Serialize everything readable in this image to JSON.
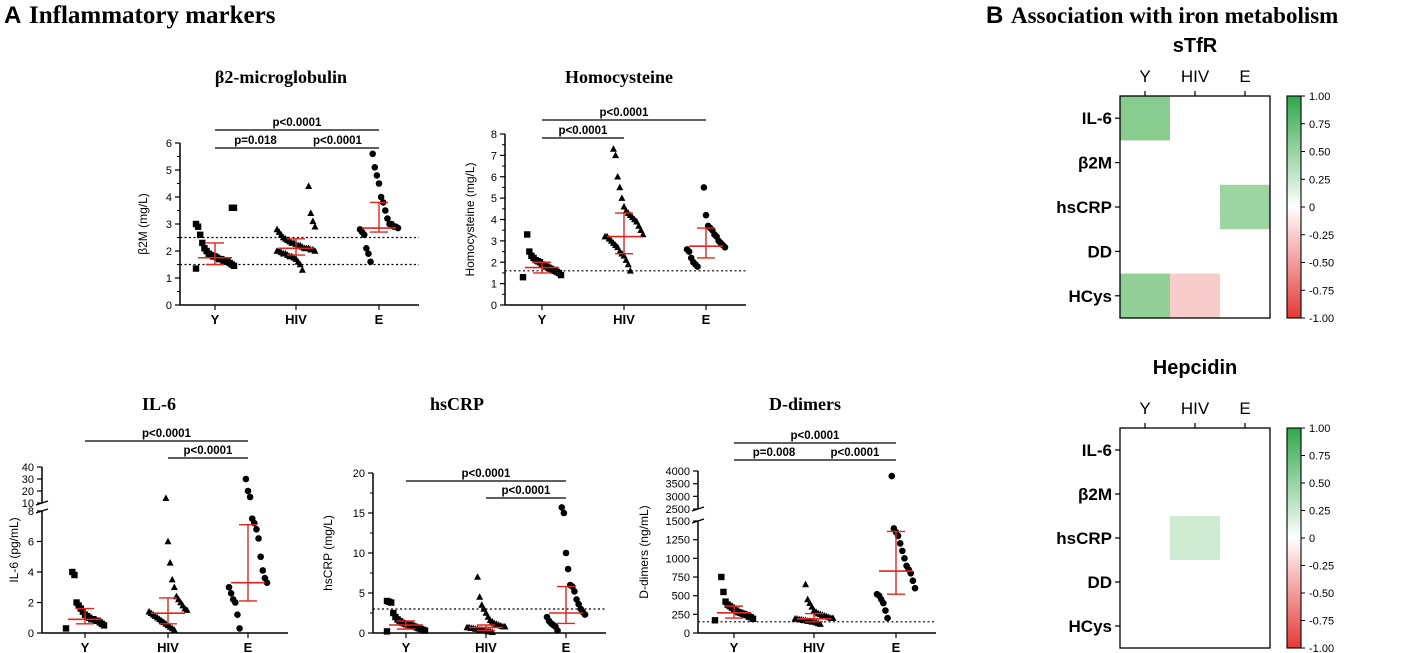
{
  "panels": {
    "a_letter": "A",
    "a_title": "Inflammatory markers",
    "b_letter": "B",
    "b_title": "Association with iron metabolism"
  },
  "chart_data": [
    {
      "id": "b2m",
      "type": "scatter",
      "title": "β2-microglobulin",
      "ylabel": "β2M (mg/L)",
      "categories": [
        "Y",
        "HIV",
        "E"
      ],
      "ylim": [
        0,
        6
      ],
      "yticks": [
        0,
        1,
        2,
        3,
        4,
        5,
        6
      ],
      "reference_lines": [
        1.5,
        2.5
      ],
      "median": [
        1.75,
        2.1,
        2.85
      ],
      "iqr": [
        [
          1.5,
          2.3
        ],
        [
          1.85,
          2.45
        ],
        [
          2.7,
          3.8
        ]
      ],
      "markers": [
        "square",
        "triangle",
        "circle"
      ],
      "points": [
        [
          1.35,
          1.45,
          1.5,
          1.55,
          1.6,
          1.6,
          1.65,
          1.7,
          1.7,
          1.75,
          1.8,
          1.8,
          1.85,
          1.9,
          2.0,
          2.1,
          2.3,
          2.6,
          2.9,
          3.0,
          3.6,
          3.6
        ],
        [
          1.3,
          1.5,
          1.6,
          1.7,
          1.75,
          1.8,
          1.8,
          1.85,
          1.9,
          1.9,
          1.95,
          2.0,
          2.0,
          2.0,
          2.05,
          2.05,
          2.1,
          2.1,
          2.1,
          2.15,
          2.2,
          2.2,
          2.25,
          2.3,
          2.3,
          2.35,
          2.4,
          2.45,
          2.5,
          2.6,
          2.7,
          2.8,
          2.9,
          3.1,
          3.4,
          4.4
        ],
        [
          1.6,
          1.9,
          2.1,
          2.6,
          2.7,
          2.8,
          2.85,
          2.9,
          2.9,
          3.0,
          3.0,
          3.2,
          3.5,
          3.8,
          4.0,
          4.5,
          4.8,
          5.1,
          5.6
        ]
      ],
      "comparisons": [
        {
          "from": 0,
          "to": 2,
          "label": "p<0.0001"
        },
        {
          "from": 0,
          "to": 1,
          "label": "p=0.018"
        },
        {
          "from": 1,
          "to": 2,
          "label": "p<0.0001"
        }
      ]
    },
    {
      "id": "hcys",
      "type": "scatter",
      "title": "Homocysteine",
      "ylabel": "Homocysteine (mg/L)",
      "categories": [
        "Y",
        "HIV",
        "E"
      ],
      "ylim": [
        0,
        8
      ],
      "yticks": [
        0,
        1,
        2,
        3,
        4,
        5,
        6,
        7,
        8
      ],
      "reference_lines": [
        1.6
      ],
      "median": [
        1.75,
        3.2,
        2.75
      ],
      "iqr": [
        [
          1.5,
          2.0
        ],
        [
          2.4,
          4.3
        ],
        [
          2.2,
          3.6
        ]
      ],
      "markers": [
        "square",
        "triangle",
        "circle"
      ],
      "points": [
        [
          1.3,
          1.4,
          1.5,
          1.55,
          1.6,
          1.65,
          1.7,
          1.75,
          1.8,
          1.85,
          1.9,
          2.0,
          2.05,
          2.1,
          2.2,
          2.3,
          2.5,
          3.3
        ],
        [
          1.6,
          1.9,
          2.1,
          2.3,
          2.4,
          2.5,
          2.7,
          2.8,
          2.9,
          3.0,
          3.1,
          3.2,
          3.2,
          3.3,
          3.5,
          3.7,
          3.9,
          4.0,
          4.1,
          4.2,
          4.3,
          4.4,
          4.6,
          5.0,
          5.5,
          6.0,
          7.0,
          7.3
        ],
        [
          1.8,
          1.9,
          2.0,
          2.2,
          2.5,
          2.6,
          2.7,
          2.8,
          2.9,
          3.0,
          3.2,
          3.3,
          3.5,
          3.6,
          3.7,
          4.2,
          5.5
        ]
      ],
      "comparisons": [
        {
          "from": 0,
          "to": 2,
          "label": "p<0.0001"
        },
        {
          "from": 0,
          "to": 1,
          "label": "p<0.0001"
        }
      ]
    },
    {
      "id": "il6",
      "type": "scatter",
      "title": "IL-6",
      "ylabel": "IL-6 (pg/mL)",
      "categories": [
        "Y",
        "HIV",
        "E"
      ],
      "ylim": [
        0,
        8
      ],
      "yticks": [
        0,
        2,
        4,
        6,
        8
      ],
      "upper_ticks": [
        10,
        20,
        30,
        40
      ],
      "median": [
        0.9,
        1.3,
        3.3
      ],
      "iqr": [
        [
          0.6,
          1.6
        ],
        [
          0.6,
          2.3
        ],
        [
          2.1,
          7.1
        ]
      ],
      "markers": [
        "square",
        "triangle",
        "circle"
      ],
      "points": [
        [
          0.3,
          0.5,
          0.6,
          0.7,
          0.8,
          0.8,
          0.9,
          0.9,
          1.0,
          1.1,
          1.2,
          1.4,
          1.6,
          1.8,
          2.0,
          3.8,
          4.0
        ],
        [
          0.2,
          0.3,
          0.4,
          0.5,
          0.6,
          0.7,
          0.8,
          0.9,
          1.0,
          1.1,
          1.2,
          1.3,
          1.4,
          1.5,
          1.6,
          1.8,
          2.0,
          2.2,
          2.4,
          3.0,
          3.5,
          4.6,
          6.0,
          14
        ],
        [
          0.3,
          1.2,
          2.0,
          2.2,
          2.6,
          3.0,
          3.3,
          3.6,
          4.1,
          5.0,
          6.2,
          6.8,
          7.2,
          7.5,
          15,
          20,
          30
        ]
      ],
      "comparisons": [
        {
          "from": 0,
          "to": 2,
          "label": "p<0.0001"
        },
        {
          "from": 1,
          "to": 2,
          "label": "p<0.0001"
        }
      ]
    },
    {
      "id": "hscrp",
      "type": "scatter",
      "title": "hsCRP",
      "ylabel": "hsCRP (mg/L)",
      "categories": [
        "Y",
        "HIV",
        "E"
      ],
      "ylim": [
        0,
        20
      ],
      "yticks": [
        0,
        5,
        10,
        15,
        20
      ],
      "reference_lines": [
        3
      ],
      "median": [
        1.0,
        0.7,
        2.5
      ],
      "iqr": [
        [
          0.5,
          1.5
        ],
        [
          0.3,
          1.0
        ],
        [
          1.2,
          5.8
        ]
      ],
      "markers": [
        "square",
        "triangle",
        "circle"
      ],
      "points": [
        [
          0.2,
          0.3,
          0.4,
          0.5,
          0.6,
          0.7,
          0.8,
          0.9,
          1.0,
          1.0,
          1.1,
          1.2,
          1.3,
          1.5,
          1.7,
          2.0,
          2.5,
          3.8,
          3.9,
          4.0
        ],
        [
          0.1,
          0.2,
          0.2,
          0.3,
          0.3,
          0.4,
          0.4,
          0.5,
          0.5,
          0.6,
          0.6,
          0.7,
          0.7,
          0.8,
          0.8,
          0.9,
          1.0,
          1.1,
          1.2,
          1.4,
          1.6,
          2.0,
          2.5,
          3.0,
          3.5,
          4.5,
          7.0
        ],
        [
          0.3,
          0.8,
          1.0,
          1.2,
          1.5,
          2.0,
          2.3,
          2.6,
          3.0,
          3.6,
          4.2,
          5.2,
          5.8,
          6.0,
          8.0,
          10.0,
          15.0,
          15.7
        ]
      ],
      "comparisons": [
        {
          "from": 0,
          "to": 2,
          "label": "p<0.0001"
        },
        {
          "from": 1,
          "to": 2,
          "label": "p<0.0001"
        }
      ]
    },
    {
      "id": "ddimer",
      "type": "scatter",
      "title": "D-dimers",
      "ylabel": "D-dimers (ng/mL)",
      "categories": [
        "Y",
        "HIV",
        "E"
      ],
      "ylim": [
        0,
        1500
      ],
      "yticks": [
        0,
        250,
        500,
        750,
        1000,
        1250,
        1500
      ],
      "upper_ticks": [
        2500,
        3000,
        3500,
        4000
      ],
      "reference_lines": [
        150
      ],
      "median": [
        270,
        190,
        830
      ],
      "iqr": [
        [
          200,
          360
        ],
        [
          150,
          260
        ],
        [
          520,
          1360
        ]
      ],
      "markers": [
        "square",
        "triangle",
        "circle"
      ],
      "points": [
        [
          170,
          190,
          210,
          220,
          240,
          250,
          260,
          270,
          280,
          300,
          320,
          340,
          360,
          380,
          420,
          550,
          750
        ],
        [
          120,
          130,
          140,
          150,
          150,
          160,
          160,
          170,
          170,
          180,
          180,
          190,
          190,
          200,
          200,
          210,
          220,
          230,
          240,
          250,
          260,
          280,
          300,
          350,
          400,
          450,
          650
        ],
        [
          200,
          300,
          400,
          450,
          500,
          520,
          600,
          700,
          800,
          850,
          900,
          1000,
          1100,
          1200,
          1300,
          1350,
          1400,
          3800
        ]
      ],
      "comparisons": [
        {
          "from": 0,
          "to": 2,
          "label": "p<0.0001"
        },
        {
          "from": 0,
          "to": 1,
          "label": "p=0.008"
        },
        {
          "from": 1,
          "to": 2,
          "label": "p<0.0001"
        }
      ]
    },
    {
      "id": "stfr",
      "type": "heatmap",
      "title": "sTfR",
      "columns": [
        "Y",
        "HIV",
        "E"
      ],
      "rows": [
        "IL-6",
        "β2M",
        "hsCRP",
        "DD",
        "HCys"
      ],
      "values": [
        [
          0.6,
          0,
          0
        ],
        [
          0,
          0,
          0
        ],
        [
          0,
          0,
          0.5
        ],
        [
          0,
          0,
          0
        ],
        [
          0.55,
          -0.25,
          0
        ]
      ],
      "colorbar_ticks": [
        "1.00",
        "0.75",
        "0.50",
        "0.25",
        "0",
        "-0.25",
        "-0.50",
        "-0.75",
        "-1.00"
      ],
      "range": [
        -1,
        1
      ]
    },
    {
      "id": "hepcidin",
      "type": "heatmap",
      "title": "Hepcidin",
      "columns": [
        "Y",
        "HIV",
        "E"
      ],
      "rows": [
        "IL-6",
        "β2M",
        "hsCRP",
        "DD",
        "HCys"
      ],
      "values": [
        [
          0,
          0,
          0
        ],
        [
          0,
          0,
          0
        ],
        [
          0,
          0.25,
          0
        ],
        [
          0,
          0,
          0
        ],
        [
          0,
          0,
          0
        ]
      ],
      "colorbar_ticks": [
        "1.00",
        "0.75",
        "0.50",
        "0.25",
        "0",
        "-0.25",
        "-0.50",
        "-0.75",
        "-1.00"
      ],
      "range": [
        -1,
        1
      ]
    }
  ]
}
